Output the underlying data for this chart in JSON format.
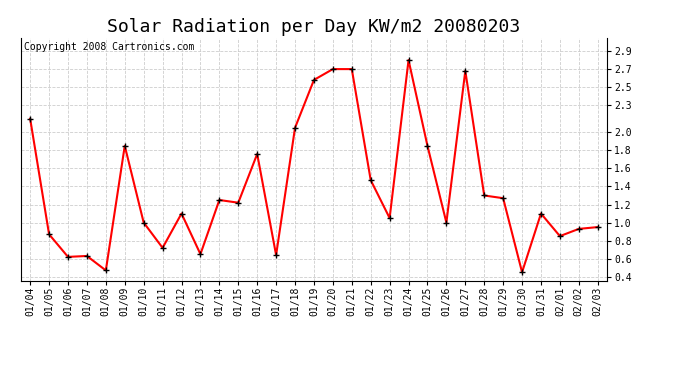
{
  "title": "Solar Radiation per Day KW/m2 20080203",
  "copyright": "Copyright 2008 Cartronics.com",
  "dates": [
    "01/04",
    "01/05",
    "01/06",
    "01/07",
    "01/08",
    "01/09",
    "01/10",
    "01/11",
    "01/12",
    "01/13",
    "01/14",
    "01/15",
    "01/16",
    "01/17",
    "01/18",
    "01/19",
    "01/20",
    "01/21",
    "01/22",
    "01/23",
    "01/24",
    "01/25",
    "01/26",
    "01/27",
    "01/28",
    "01/29",
    "01/30",
    "01/31",
    "02/01",
    "02/02",
    "02/03"
  ],
  "values": [
    2.15,
    0.87,
    0.62,
    0.63,
    0.47,
    1.85,
    1.0,
    0.72,
    1.1,
    0.65,
    1.25,
    1.22,
    1.76,
    0.64,
    2.05,
    2.58,
    2.7,
    2.7,
    1.47,
    1.05,
    2.8,
    1.85,
    1.0,
    2.68,
    1.3,
    1.27,
    0.45,
    1.1,
    0.85,
    0.93,
    0.95
  ],
  "ylim": [
    0.35,
    3.05
  ],
  "yticks": [
    0.4,
    0.6,
    0.8,
    1.0,
    1.2,
    1.4,
    1.6,
    1.8,
    2.0,
    2.3,
    2.5,
    2.7,
    2.9
  ],
  "line_color": "red",
  "marker": "+",
  "marker_color": "black",
  "grid_color": "#c8c8c8",
  "bg_color": "#ffffff",
  "title_fontsize": 13,
  "copyright_fontsize": 7,
  "tick_fontsize": 7
}
